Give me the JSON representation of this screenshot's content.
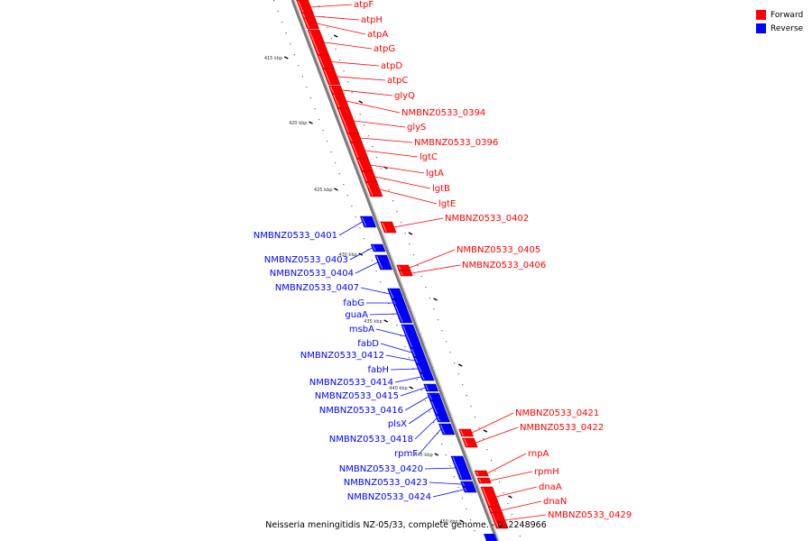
{
  "caption": "Neisseria meningitidis NZ-05/33, complete genome. - 0..2248966",
  "legend": [
    {
      "label": "Forward",
      "color": "#ff0000"
    },
    {
      "label": "Reverse",
      "color": "#0000ff"
    }
  ],
  "colors": {
    "forward": "#ff0000",
    "reverse": "#0000ff"
  },
  "ticks": [
    "415 kbp",
    "420 kbp",
    "425 kbp",
    "430 kbp",
    "435 kbp",
    "440 kbp",
    "445 kbp",
    "450 kbp"
  ],
  "genes": [
    {
      "name": "atpF",
      "strand": "forward"
    },
    {
      "name": "atpH",
      "strand": "forward"
    },
    {
      "name": "atpA",
      "strand": "forward"
    },
    {
      "name": "atpG",
      "strand": "forward"
    },
    {
      "name": "atpD",
      "strand": "forward"
    },
    {
      "name": "atpC",
      "strand": "forward"
    },
    {
      "name": "glyQ",
      "strand": "forward"
    },
    {
      "name": "NMBNZ0533_0394",
      "strand": "forward"
    },
    {
      "name": "glyS",
      "strand": "forward"
    },
    {
      "name": "NMBNZ0533_0396",
      "strand": "forward"
    },
    {
      "name": "lgtC",
      "strand": "forward"
    },
    {
      "name": "lgtA",
      "strand": "forward"
    },
    {
      "name": "lgtB",
      "strand": "forward"
    },
    {
      "name": "lgtE",
      "strand": "forward"
    },
    {
      "name": "NMBNZ0533_0402",
      "strand": "forward"
    },
    {
      "name": "NMBNZ0533_0401",
      "strand": "reverse"
    },
    {
      "name": "NMBNZ0533_0403",
      "strand": "reverse"
    },
    {
      "name": "NMBNZ0533_0404",
      "strand": "reverse"
    },
    {
      "name": "NMBNZ0533_0405",
      "strand": "forward"
    },
    {
      "name": "NMBNZ0533_0406",
      "strand": "forward"
    },
    {
      "name": "NMBNZ0533_0407",
      "strand": "reverse"
    },
    {
      "name": "fabG",
      "strand": "reverse"
    },
    {
      "name": "guaA",
      "strand": "reverse"
    },
    {
      "name": "msbA",
      "strand": "reverse"
    },
    {
      "name": "fabD",
      "strand": "reverse"
    },
    {
      "name": "NMBNZ0533_0412",
      "strand": "reverse"
    },
    {
      "name": "fabH",
      "strand": "reverse"
    },
    {
      "name": "NMBNZ0533_0414",
      "strand": "reverse"
    },
    {
      "name": "NMBNZ0533_0415",
      "strand": "reverse"
    },
    {
      "name": "NMBNZ0533_0416",
      "strand": "reverse"
    },
    {
      "name": "plsX",
      "strand": "reverse"
    },
    {
      "name": "NMBNZ0533_0418",
      "strand": "reverse"
    },
    {
      "name": "rpmF",
      "strand": "reverse"
    },
    {
      "name": "NMBNZ0533_0420",
      "strand": "reverse"
    },
    {
      "name": "NMBNZ0533_0423",
      "strand": "reverse"
    },
    {
      "name": "NMBNZ0533_0424",
      "strand": "reverse"
    },
    {
      "name": "NMBNZ0533_0421",
      "strand": "forward"
    },
    {
      "name": "NMBNZ0533_0422",
      "strand": "forward"
    },
    {
      "name": "rnpA",
      "strand": "forward"
    },
    {
      "name": "rpmH",
      "strand": "forward"
    },
    {
      "name": "dnaA",
      "strand": "forward"
    },
    {
      "name": "dnaN",
      "strand": "forward"
    },
    {
      "name": "NMBNZ0533_0429",
      "strand": "forward"
    }
  ]
}
